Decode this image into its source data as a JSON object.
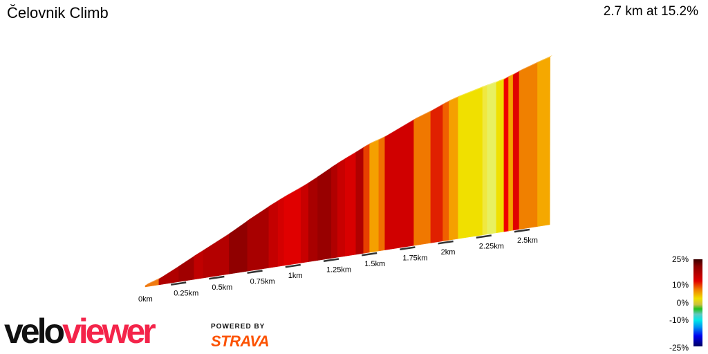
{
  "header": {
    "title": "Čelovnik Climb",
    "summary": "2.7 km at 15.2%"
  },
  "chart_data": {
    "type": "area",
    "title": "Čelovnik Climb",
    "distance_km": 2.7,
    "avg_gradient_pct": 15.2,
    "x_ticks": [
      "0km",
      "0.25km",
      "0.5km",
      "0.75km",
      "1km",
      "1.25km",
      "1.5km",
      "1.75km",
      "2km",
      "2.25km",
      "2.5km"
    ],
    "x_tick_values": [
      0,
      0.25,
      0.5,
      0.75,
      1,
      1.25,
      1.5,
      1.75,
      2,
      2.25,
      2.5
    ],
    "segments": [
      {
        "start": 0,
        "grad": 13,
        "color": "#f07a10"
      },
      {
        "start": 0.09,
        "grad": 20,
        "color": "#b00000"
      },
      {
        "start": 0.22,
        "grad": 21,
        "color": "#a00000"
      },
      {
        "start": 0.32,
        "grad": 19,
        "color": "#c00000"
      },
      {
        "start": 0.38,
        "grad": 20,
        "color": "#b40000"
      },
      {
        "start": 0.55,
        "grad": 23,
        "color": "#900000"
      },
      {
        "start": 0.67,
        "grad": 21,
        "color": "#a80000"
      },
      {
        "start": 0.81,
        "grad": 19,
        "color": "#c40000"
      },
      {
        "start": 0.87,
        "grad": 18,
        "color": "#d40000"
      },
      {
        "start": 0.91,
        "grad": 17,
        "color": "#e00000"
      },
      {
        "start": 1.02,
        "grad": 19,
        "color": "#c80000"
      },
      {
        "start": 1.07,
        "grad": 21,
        "color": "#a80000"
      },
      {
        "start": 1.13,
        "grad": 22,
        "color": "#980000"
      },
      {
        "start": 1.22,
        "grad": 20,
        "color": "#b00000"
      },
      {
        "start": 1.26,
        "grad": 19,
        "color": "#c80000"
      },
      {
        "start": 1.31,
        "grad": 18,
        "color": "#d80000"
      },
      {
        "start": 1.38,
        "grad": 20,
        "color": "#b00000"
      },
      {
        "start": 1.43,
        "grad": 16,
        "color": "#e84000"
      },
      {
        "start": 1.47,
        "grad": 12,
        "color": "#f5a000"
      },
      {
        "start": 1.53,
        "grad": 14,
        "color": "#f07000"
      },
      {
        "start": 1.57,
        "grad": 18,
        "color": "#d00000"
      },
      {
        "start": 1.76,
        "grad": 14,
        "color": "#f07800"
      },
      {
        "start": 1.87,
        "grad": 17,
        "color": "#e02000"
      },
      {
        "start": 1.95,
        "grad": 15,
        "color": "#f06000"
      },
      {
        "start": 1.99,
        "grad": 12,
        "color": "#f5a000"
      },
      {
        "start": 2.05,
        "grad": 10,
        "color": "#f0e000"
      },
      {
        "start": 2.21,
        "grad": 9,
        "color": "#f0e840"
      },
      {
        "start": 2.24,
        "grad": 8,
        "color": "#e8f060"
      },
      {
        "start": 2.3,
        "grad": 10,
        "color": "#f0e000"
      },
      {
        "start": 2.35,
        "grad": 17,
        "color": "#f00000"
      },
      {
        "start": 2.38,
        "grad": 12,
        "color": "#f5a000"
      },
      {
        "start": 2.41,
        "grad": 17,
        "color": "#e00000"
      },
      {
        "start": 2.45,
        "grad": 13,
        "color": "#f08000"
      },
      {
        "start": 2.57,
        "grad": 12,
        "color": "#f5a800"
      }
    ],
    "end_km": 2.65,
    "legend": {
      "labels": [
        "25%",
        "10%",
        "0%",
        "-10%",
        "-25%"
      ],
      "placement": "bottom-right"
    }
  },
  "branding": {
    "velo": "velo",
    "viewer": "viewer",
    "powered_by": "POWERED BY",
    "strava": "STRAVA"
  }
}
